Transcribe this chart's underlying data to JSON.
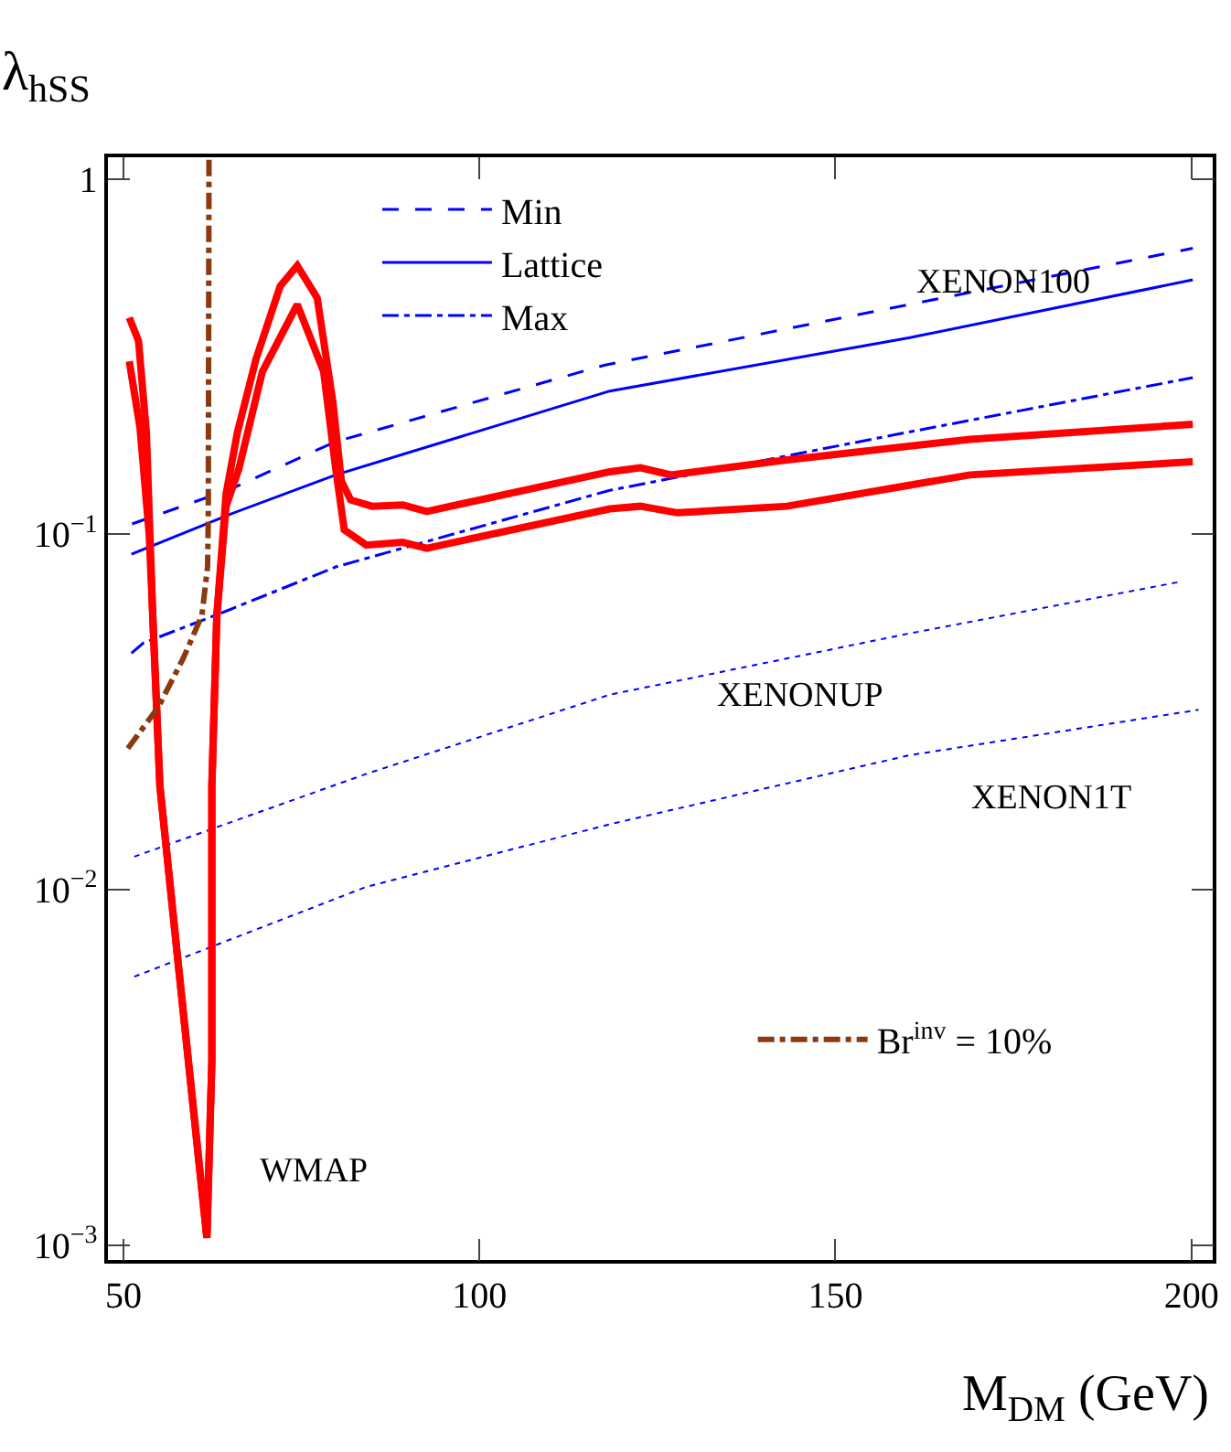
{
  "chart_data": {
    "type": "line",
    "xlabel": "M$_{DM}$ (GeV)",
    "ylabel": "λ$_{hSS}$",
    "log": "y",
    "xlim": [
      47.8,
      203
    ],
    "xticks": [
      50,
      100,
      150,
      200
    ],
    "ylim": [
      0.00091,
      1.15
    ],
    "yticks": [
      {
        "value": 0.001,
        "label": "10$^{−3}$"
      },
      {
        "value": 0.01,
        "label": "10$^{−2}$"
      },
      {
        "value": 0.1,
        "label": "10$^{−1}$"
      },
      1
    ],
    "grid": false,
    "legend": "top",
    "marker": "none",
    "series": [
      {
        "name": "Min",
        "color": "#0000ff",
        "line_style": "dashed",
        "x": [
          51.2,
          65,
          79.7,
          117.5,
          160.3,
          200.2
        ],
        "values": [
          0.107,
          0.134,
          0.182,
          0.299,
          0.443,
          0.638
        ]
      },
      {
        "name": "Lattice",
        "color": "#0000ff",
        "line_style": "solid",
        "x": [
          51.1,
          65,
          79.8,
          118.3,
          160.3,
          200.2
        ],
        "values": [
          0.0879,
          0.114,
          0.147,
          0.253,
          0.357,
          0.52
        ]
      },
      {
        "name": "Max",
        "color": "#0000ff",
        "line_style": "dashdot",
        "x": [
          51.1,
          52.8,
          65,
          79.8,
          118.3,
          160.3,
          200.2
        ],
        "values": [
          0.0463,
          0.0495,
          0.0615,
          0.081,
          0.133,
          0.194,
          0.276
        ]
      },
      {
        "color": "#0000ff",
        "line_style": "dotted",
        "x": [
          51.5,
          84.1,
          118.3,
          160.3,
          198.5
        ],
        "values": [
          0.0124,
          0.0212,
          0.0354,
          0.0526,
          0.0736
        ]
      },
      {
        "color": "#0000ff",
        "line_style": "dotted",
        "x": [
          51.5,
          84.1,
          118.3,
          160.3,
          201
        ],
        "values": [
          0.0057,
          0.0102,
          0.0153,
          0.0239,
          0.0321
        ]
      },
      {
        "color": "#ff0000",
        "line_style": "solid",
        "x": [
          50.8,
          52.1,
          53.2,
          54.1,
          55.1,
          57.5,
          61.7,
          62.4,
          62.4,
          63.1,
          64.4,
          66,
          68.6,
          72,
          74.4,
          77.2,
          79.4,
          80.6,
          81.9,
          84.9,
          89.2,
          92.6,
          118.3,
          122.6,
          126.9,
          143.2,
          168.9,
          200.2
        ],
        "values": [
          0.407,
          0.35,
          0.194,
          0.059,
          0.0196,
          0.0067,
          0.00105,
          0.0033,
          0.0196,
          0.059,
          0.13,
          0.194,
          0.311,
          0.499,
          0.57,
          0.462,
          0.236,
          0.141,
          0.125,
          0.12,
          0.121,
          0.116,
          0.15,
          0.154,
          0.147,
          0.162,
          0.185,
          0.204
        ]
      },
      {
        "color": "#ff0000",
        "line_style": "solid",
        "x": [
          50.8,
          52.3,
          53.6,
          54.1,
          55.1,
          57.5,
          61.7,
          62.4,
          62.4,
          63.1,
          64.4,
          66.2,
          69.5,
          74.4,
          78.1,
          79.8,
          81,
          84.1,
          89.2,
          92.6,
          118.3,
          122.6,
          127.8,
          143.2,
          168.9,
          200.2
        ],
        "values": [
          0.307,
          0.2,
          0.1,
          0.059,
          0.0196,
          0.0067,
          0.00105,
          0.0033,
          0.0196,
          0.059,
          0.12,
          0.153,
          0.287,
          0.443,
          0.287,
          0.153,
          0.103,
          0.0933,
          0.095,
          0.0914,
          0.118,
          0.12,
          0.115,
          0.12,
          0.147,
          0.16
        ]
      },
      {
        "name": "Br$^{inv}$ = 10%",
        "color": "#8b3a0f",
        "line_style": "dashdot",
        "x": [
          50.6,
          54.9,
          58.4,
          61,
          61.8,
          61.9,
          62
        ],
        "values": [
          0.025,
          0.0327,
          0.0449,
          0.0591,
          0.081,
          0.11,
          1.15
        ]
      }
    ],
    "annotations": [
      "XENON100",
      "XENONUP",
      "XENON1T",
      "WMAP"
    ]
  }
}
